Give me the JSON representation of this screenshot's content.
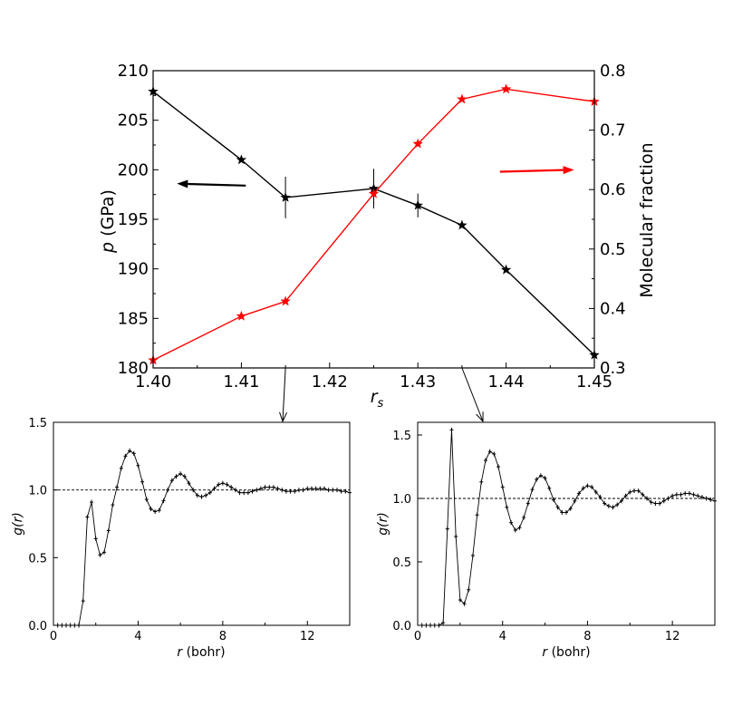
{
  "colors": {
    "pressure": "#000000",
    "fraction": "#ff0000"
  },
  "chart_data": [
    {
      "id": "top",
      "type": "line",
      "xlabel_main": "r",
      "xlabel_sub": "s",
      "ylabel_left_italic": "p",
      "ylabel_left_rest": " (GPa)",
      "ylabel_right": "Molecular fraction",
      "xlim": [
        1.4,
        1.45
      ],
      "ylim_left": [
        180,
        210
      ],
      "ylim_right": [
        0.3,
        0.8
      ],
      "xticks": [
        "1.40",
        "1.41",
        "1.42",
        "1.43",
        "1.44",
        "1.45"
      ],
      "yticks_left": [
        "180",
        "185",
        "190",
        "195",
        "200",
        "205",
        "210"
      ],
      "yticks_right": [
        "0.3",
        "0.4",
        "0.5",
        "0.6",
        "0.7",
        "0.8"
      ],
      "series": [
        {
          "axis": "left",
          "color": "#000000",
          "marker": "star",
          "x": [
            1.4,
            1.41,
            1.415,
            1.425,
            1.43,
            1.435,
            1.44,
            1.45
          ],
          "y": [
            207.9,
            201.0,
            197.2,
            198.1,
            196.4,
            194.4,
            189.9,
            181.3
          ],
          "yerr": [
            0,
            0,
            2.1,
            2.0,
            1.2,
            0,
            0,
            0
          ]
        },
        {
          "axis": "right",
          "color": "#ff0000",
          "marker": "star",
          "x": [
            1.4,
            1.41,
            1.415,
            1.425,
            1.43,
            1.435,
            1.44,
            1.45
          ],
          "y": [
            0.313,
            0.387,
            0.412,
            0.593,
            0.677,
            0.752,
            0.769,
            0.748
          ]
        }
      ],
      "annotations": [
        {
          "type": "arrow",
          "color": "#000000",
          "from": [
            1.4105,
            198.4
          ],
          "to": [
            1.4027,
            198.6
          ]
        },
        {
          "type": "arrow",
          "color": "#ff0000",
          "from": [
            1.4393,
            199.8
          ],
          "to": [
            1.4477,
            200.0
          ]
        }
      ],
      "connectors": [
        {
          "from_x": 1.415,
          "to_panel": "left"
        },
        {
          "from_x": 1.435,
          "to_panel": "right"
        }
      ]
    },
    {
      "id": "left",
      "type": "line",
      "xlabel_italic": "r",
      "xlabel_rest": " (bohr)",
      "ylabel": "g(r)",
      "xlim": [
        0,
        14
      ],
      "ylim": [
        0,
        1.5
      ],
      "xticks": [
        "0",
        "4",
        "8",
        "12"
      ],
      "yticks": [
        "0.0",
        "0.5",
        "1.0",
        "1.5"
      ],
      "reference_line": 1.0,
      "series": [
        {
          "color": "#000000",
          "x": [
            0.2,
            0.4,
            0.6,
            0.8,
            1.0,
            1.2,
            1.4,
            1.6,
            1.8,
            2.0,
            2.2,
            2.4,
            2.6,
            2.8,
            3.0,
            3.2,
            3.4,
            3.6,
            3.8,
            4.0,
            4.2,
            4.4,
            4.6,
            4.8,
            5.0,
            5.2,
            5.4,
            5.6,
            5.8,
            6.0,
            6.2,
            6.4,
            6.6,
            6.8,
            7.0,
            7.2,
            7.4,
            7.6,
            7.8,
            8.0,
            8.2,
            8.4,
            8.6,
            8.8,
            9.0,
            9.2,
            9.4,
            9.6,
            9.8,
            10.0,
            10.2,
            10.4,
            10.6,
            10.8,
            11.0,
            11.2,
            11.4,
            11.6,
            11.8,
            12.0,
            12.2,
            12.4,
            12.6,
            12.8,
            13.0,
            13.2,
            13.4,
            13.6,
            13.8,
            14.0
          ],
          "y": [
            0.0,
            0.0,
            0.0,
            0.0,
            0.0,
            0.0,
            0.18,
            0.8,
            0.91,
            0.64,
            0.52,
            0.54,
            0.7,
            0.89,
            1.02,
            1.16,
            1.25,
            1.29,
            1.27,
            1.18,
            1.06,
            0.93,
            0.86,
            0.84,
            0.85,
            0.92,
            1.0,
            1.07,
            1.1,
            1.12,
            1.1,
            1.05,
            1.0,
            0.96,
            0.95,
            0.96,
            0.98,
            1.01,
            1.04,
            1.05,
            1.04,
            1.02,
            1.0,
            0.98,
            0.98,
            0.98,
            0.99,
            1.0,
            1.01,
            1.02,
            1.02,
            1.02,
            1.01,
            1.0,
            0.99,
            0.99,
            0.99,
            1.0,
            1.0,
            1.01,
            1.01,
            1.01,
            1.01,
            1.01,
            1.0,
            1.0,
            1.0,
            0.99,
            0.99,
            0.98
          ]
        }
      ]
    },
    {
      "id": "right",
      "type": "line",
      "xlabel_italic": "r",
      "xlabel_rest": " (bohr)",
      "ylabel": "g(r)",
      "xlim": [
        0,
        14
      ],
      "ylim": [
        0,
        1.6
      ],
      "xticks": [
        "0",
        "4",
        "8",
        "12"
      ],
      "yticks": [
        "0.0",
        "0.5",
        "1.0",
        "1.5"
      ],
      "reference_line": 1.0,
      "series": [
        {
          "color": "#000000",
          "x": [
            0.2,
            0.4,
            0.6,
            0.8,
            1.0,
            1.2,
            1.4,
            1.6,
            1.8,
            2.0,
            2.2,
            2.4,
            2.6,
            2.8,
            3.0,
            3.2,
            3.4,
            3.6,
            3.8,
            4.0,
            4.2,
            4.4,
            4.6,
            4.8,
            5.0,
            5.2,
            5.4,
            5.6,
            5.8,
            6.0,
            6.2,
            6.4,
            6.6,
            6.8,
            7.0,
            7.2,
            7.4,
            7.6,
            7.8,
            8.0,
            8.2,
            8.4,
            8.6,
            8.8,
            9.0,
            9.2,
            9.4,
            9.6,
            9.8,
            10.0,
            10.2,
            10.4,
            10.6,
            10.8,
            11.0,
            11.2,
            11.4,
            11.6,
            11.8,
            12.0,
            12.2,
            12.4,
            12.6,
            12.8,
            13.0,
            13.2,
            13.4,
            13.6,
            13.8,
            14.0
          ],
          "y": [
            0.0,
            0.0,
            0.0,
            0.0,
            0.0,
            0.02,
            0.76,
            1.54,
            0.7,
            0.2,
            0.17,
            0.28,
            0.55,
            0.87,
            1.13,
            1.3,
            1.37,
            1.35,
            1.25,
            1.09,
            0.93,
            0.81,
            0.75,
            0.77,
            0.85,
            0.96,
            1.07,
            1.15,
            1.18,
            1.16,
            1.08,
            0.99,
            0.93,
            0.89,
            0.89,
            0.92,
            0.98,
            1.04,
            1.08,
            1.1,
            1.09,
            1.05,
            1.01,
            0.96,
            0.94,
            0.93,
            0.95,
            0.98,
            1.02,
            1.05,
            1.06,
            1.06,
            1.03,
            1.0,
            0.97,
            0.96,
            0.96,
            0.98,
            1.0,
            1.02,
            1.03,
            1.03,
            1.04,
            1.04,
            1.03,
            1.02,
            1.01,
            1.0,
            0.99,
            0.98
          ]
        }
      ]
    }
  ]
}
